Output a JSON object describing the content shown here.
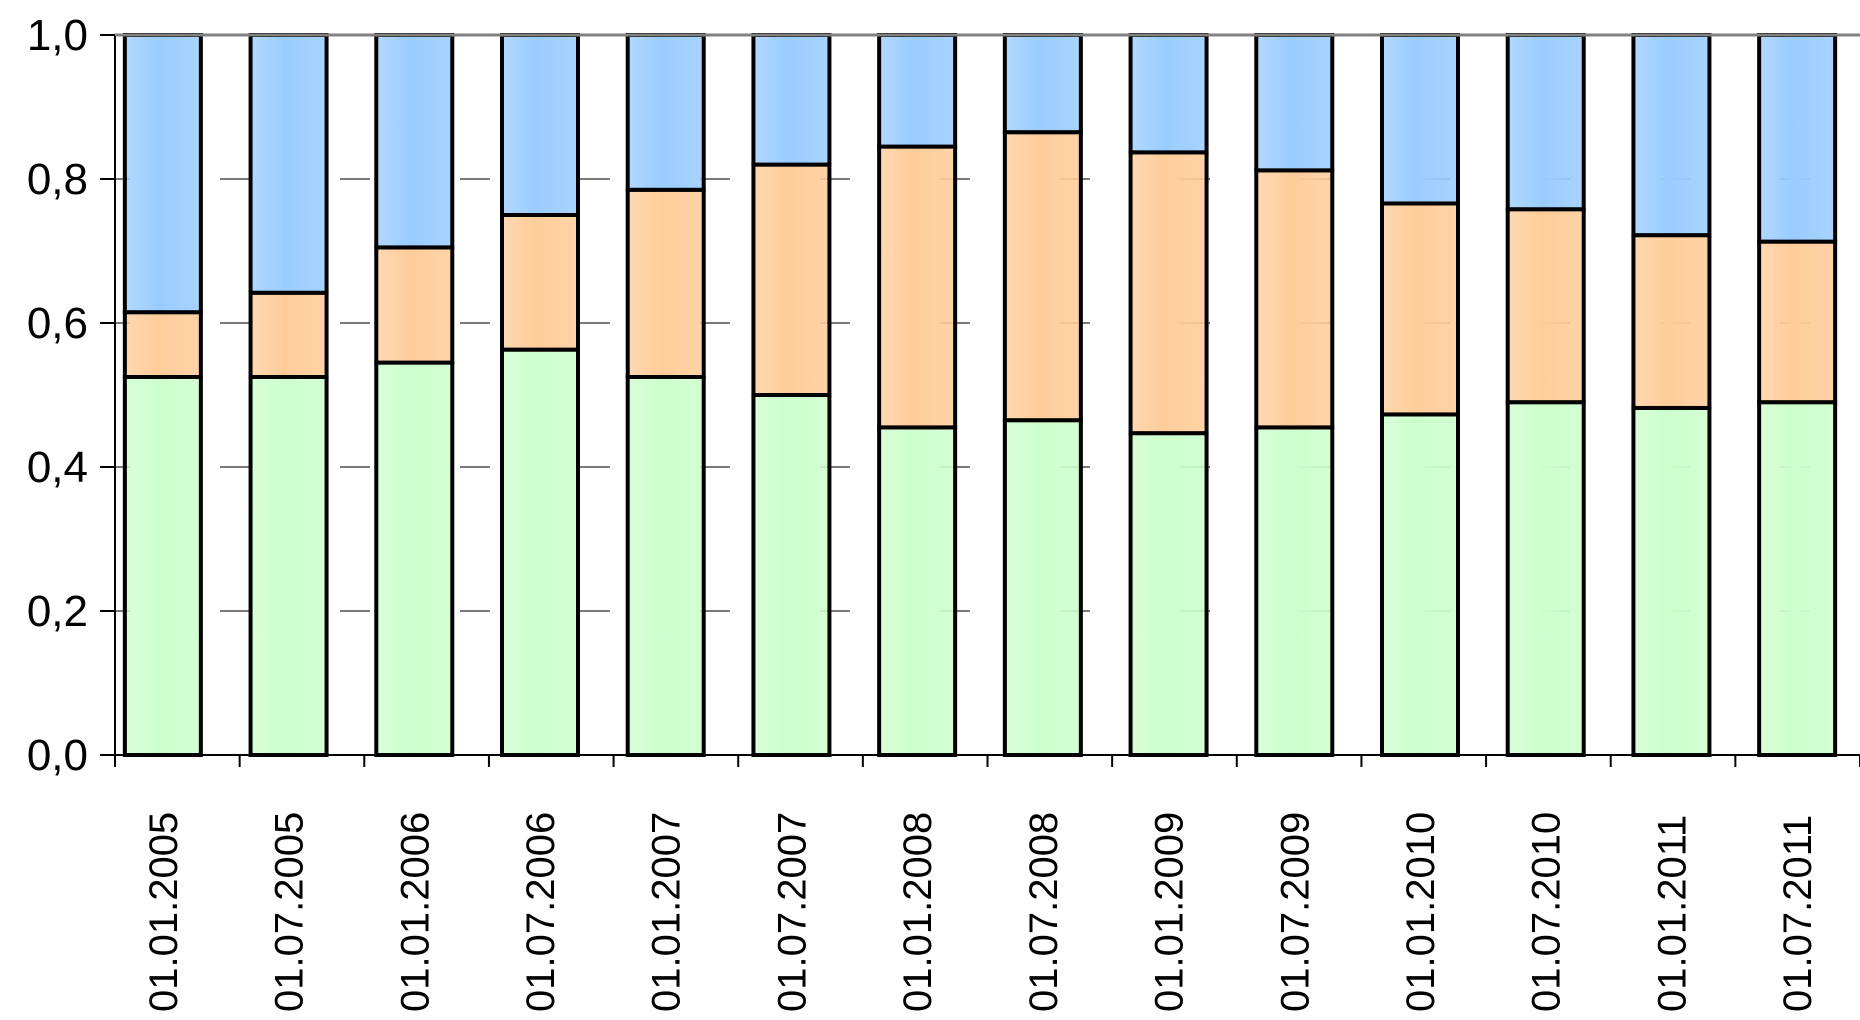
{
  "chart_data": {
    "type": "bar",
    "stacked": true,
    "title": "",
    "xlabel": "",
    "ylabel": "",
    "ylim": [
      0,
      1
    ],
    "grid": "horizontal dashed",
    "legend": "none",
    "y_ticks": [
      "0,0",
      "0,2",
      "0,4",
      "0,6",
      "0,8",
      "1,0"
    ],
    "y_tick_values": [
      0,
      0.2,
      0.4,
      0.6,
      0.8,
      1.0
    ],
    "categories": [
      "01.01.2005",
      "01.07.2005",
      "01.01.2006",
      "01.07.2006",
      "01.01.2007",
      "01.07.2007",
      "01.01.2008",
      "01.07.2008",
      "01.01.2009",
      "01.07.2009",
      "01.01.2010",
      "01.07.2010",
      "01.01.2011",
      "01.07.2011"
    ],
    "series": [
      {
        "color": "#ccffcc",
        "values": [
          0.525,
          0.525,
          0.545,
          0.563,
          0.525,
          0.5,
          0.455,
          0.465,
          0.447,
          0.455,
          0.473,
          0.49,
          0.482,
          0.49
        ]
      },
      {
        "color": "#ffcc99",
        "values": [
          0.09,
          0.117,
          0.16,
          0.187,
          0.26,
          0.32,
          0.39,
          0.4,
          0.39,
          0.357,
          0.293,
          0.268,
          0.24,
          0.223
        ]
      },
      {
        "color": "#99ccff",
        "values": [
          0.385,
          0.358,
          0.295,
          0.25,
          0.215,
          0.18,
          0.155,
          0.135,
          0.163,
          0.188,
          0.234,
          0.242,
          0.278,
          0.287
        ]
      }
    ]
  }
}
